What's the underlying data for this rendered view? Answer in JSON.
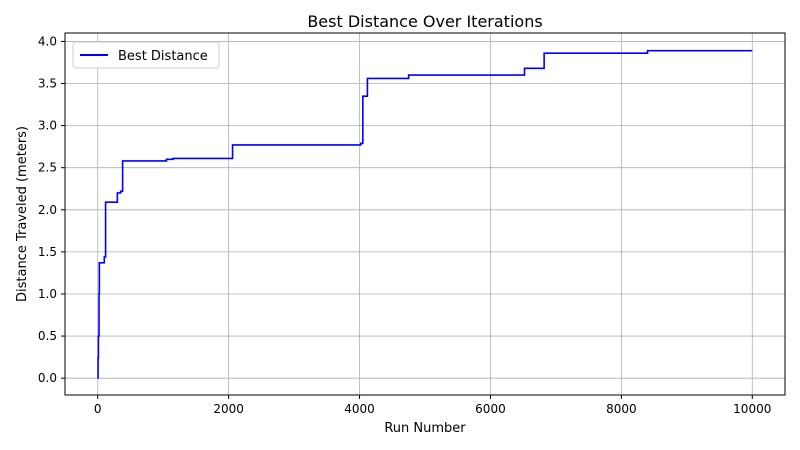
{
  "chart_data": {
    "type": "line",
    "title": "Best Distance Over Iterations",
    "xlabel": "Run Number",
    "ylabel": "Distance Traveled (meters)",
    "xlim": [
      -500,
      10500
    ],
    "ylim": [
      -0.2,
      4.1
    ],
    "xticks": [
      0,
      2000,
      4000,
      6000,
      8000,
      10000
    ],
    "xtick_labels": [
      "0",
      "2000",
      "4000",
      "6000",
      "8000",
      "10000"
    ],
    "yticks": [
      0.0,
      0.5,
      1.0,
      1.5,
      2.0,
      2.5,
      3.0,
      3.5,
      4.0
    ],
    "ytick_labels": [
      "0.0",
      "0.5",
      "1.0",
      "1.5",
      "2.0",
      "2.5",
      "3.0",
      "3.5",
      "4.0"
    ],
    "grid": true,
    "legend_position": "top-left",
    "series": [
      {
        "name": "Best Distance",
        "color": "#0000ff",
        "step": true,
        "x": [
          0,
          5,
          10,
          20,
          25,
          30,
          100,
          120,
          300,
          350,
          380,
          1050,
          1150,
          2060,
          4020,
          4050,
          4120,
          4750,
          6520,
          6820,
          8400,
          10000
        ],
        "y": [
          0.0,
          0.24,
          0.5,
          1.0,
          1.37,
          1.37,
          1.44,
          2.09,
          2.2,
          2.22,
          2.58,
          2.6,
          2.61,
          2.77,
          2.79,
          3.35,
          3.56,
          3.6,
          3.68,
          3.86,
          3.89,
          3.89
        ]
      }
    ]
  }
}
